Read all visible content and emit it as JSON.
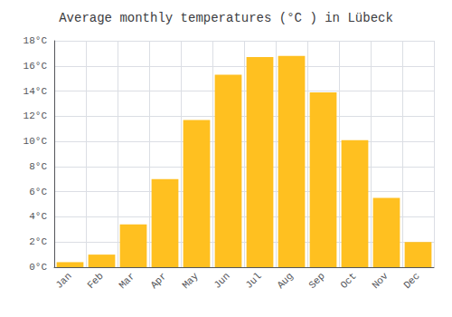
{
  "chart_data": {
    "type": "bar",
    "title": "Average monthly temperatures (°C ) in Lübeck",
    "categories": [
      "Jan",
      "Feb",
      "Mar",
      "Apr",
      "May",
      "Jun",
      "Jul",
      "Aug",
      "Sep",
      "Oct",
      "Nov",
      "Dec"
    ],
    "values": [
      0.4,
      1.0,
      3.4,
      7.0,
      11.7,
      15.3,
      16.7,
      16.8,
      13.9,
      10.1,
      5.5,
      2.0
    ],
    "color": "#FFC020",
    "ylim": [
      0,
      18
    ],
    "yticks": [
      {
        "value": 0,
        "label": "0°C"
      },
      {
        "value": 2,
        "label": "2°C"
      },
      {
        "value": 4,
        "label": "4°C"
      },
      {
        "value": 6,
        "label": "6°C"
      },
      {
        "value": 8,
        "label": "8°C"
      },
      {
        "value": 10,
        "label": "10°C"
      },
      {
        "value": 12,
        "label": "12°C"
      },
      {
        "value": 14,
        "label": "14°C"
      },
      {
        "value": 16,
        "label": "16°C"
      },
      {
        "value": 18,
        "label": "18°C"
      }
    ],
    "grid": true
  }
}
